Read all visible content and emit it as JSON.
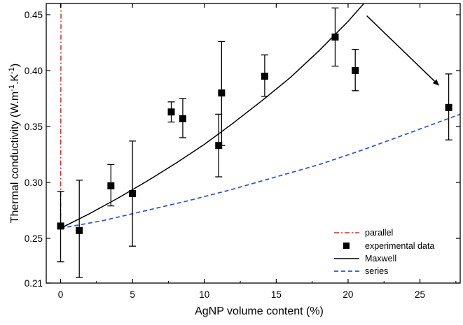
{
  "chart_data": {
    "type": "scatter",
    "xlabel": "AgNP volume content (%)",
    "ylabel_parts": [
      "Thermal conductivity (W.m",
      "-1",
      ".K",
      "-1",
      ")"
    ],
    "xlim": [
      -1,
      27.8
    ],
    "ylim": [
      0.21,
      0.46
    ],
    "x_ticks": [
      0,
      5,
      10,
      15,
      20,
      25
    ],
    "x_tick_labels": [
      "0",
      "5",
      "10",
      "15",
      "20",
      "25"
    ],
    "y_ticks": [
      0.21,
      0.25,
      0.3,
      0.35,
      0.4,
      0.45
    ],
    "y_tick_labels": [
      "0.21",
      "0.25",
      "0.30",
      "0.35",
      "0.40",
      "0.45"
    ],
    "grid": false,
    "legend_placement": "bottom-right",
    "series": [
      {
        "name": "experimental data",
        "kind": "points_with_error_bars",
        "color": "#000000",
        "points": [
          {
            "x": 0.0,
            "y": 0.261,
            "err_low": 0.229,
            "err_high": 0.292
          },
          {
            "x": 1.3,
            "y": 0.257,
            "err_low": 0.215,
            "err_high": 0.302
          },
          {
            "x": 3.5,
            "y": 0.297,
            "err_low": 0.279,
            "err_high": 0.316
          },
          {
            "x": 5.0,
            "y": 0.29,
            "err_low": 0.243,
            "err_high": 0.337
          },
          {
            "x": 7.7,
            "y": 0.363,
            "err_low": 0.354,
            "err_high": 0.372
          },
          {
            "x": 8.5,
            "y": 0.357,
            "err_low": 0.34,
            "err_high": 0.375
          },
          {
            "x": 11.0,
            "y": 0.333,
            "err_low": 0.305,
            "err_high": 0.361
          },
          {
            "x": 11.2,
            "y": 0.38,
            "err_low": 0.333,
            "err_high": 0.426
          },
          {
            "x": 14.2,
            "y": 0.395,
            "err_low": 0.377,
            "err_high": 0.414
          },
          {
            "x": 19.1,
            "y": 0.43,
            "err_low": 0.404,
            "err_high": 0.456
          },
          {
            "x": 20.5,
            "y": 0.4,
            "err_low": 0.382,
            "err_high": 0.419
          },
          {
            "x": 27.0,
            "y": 0.367,
            "err_low": 0.338,
            "err_high": 0.397
          }
        ]
      },
      {
        "name": "Maxwell",
        "kind": "line",
        "color": "#000000",
        "dash": "solid",
        "x": [
          0,
          2,
          4,
          6,
          8,
          10,
          12,
          14,
          16,
          18,
          20,
          21.1
        ],
        "y": [
          0.259,
          0.272,
          0.286,
          0.301,
          0.317,
          0.334,
          0.353,
          0.373,
          0.394,
          0.418,
          0.444,
          0.46
        ]
      },
      {
        "name": "series",
        "kind": "line",
        "color": "#2a4fd6",
        "dash": "dashed",
        "x": [
          0,
          3,
          6,
          9,
          12,
          15,
          18,
          21,
          24,
          27.8
        ],
        "y": [
          0.259,
          0.266,
          0.275,
          0.284,
          0.294,
          0.305,
          0.316,
          0.329,
          0.343,
          0.361
        ]
      },
      {
        "name": "parallel",
        "kind": "line",
        "color": "#c8322c",
        "dash": "dash-dot",
        "x": [
          0,
          0.03
        ],
        "y": [
          0.259,
          0.46
        ]
      }
    ],
    "annotations": [
      {
        "type": "arrow",
        "from": {
          "x": 21.3,
          "y": 0.449
        },
        "to": {
          "x": 26.3,
          "y": 0.387
        },
        "color": "#000000"
      }
    ]
  }
}
